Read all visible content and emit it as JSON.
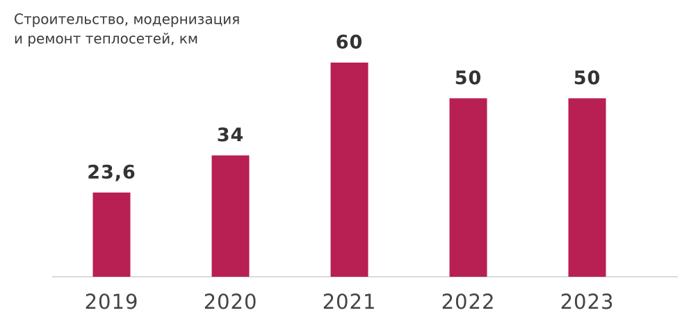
{
  "chart_data": {
    "type": "bar",
    "title": [
      "Строительство, модернизация",
      "и ремонт теплосетей, км"
    ],
    "categories": [
      "2019",
      "2020",
      "2021",
      "2022",
      "2023"
    ],
    "values": [
      23.6,
      34,
      60,
      50,
      50
    ],
    "value_labels": [
      "23,6",
      "34",
      "60",
      "50",
      "50"
    ],
    "color": "#b81f52",
    "ylim": [
      0,
      60
    ]
  }
}
